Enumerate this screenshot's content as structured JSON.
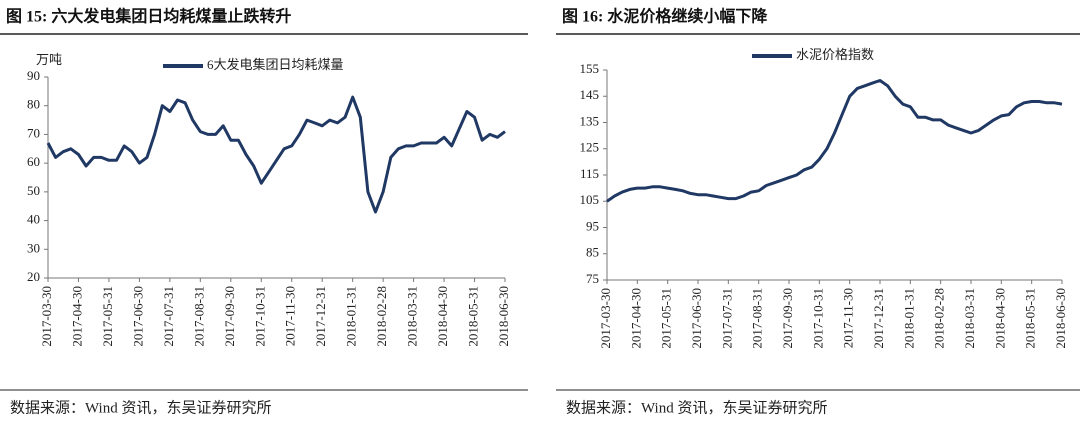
{
  "chart_data": [
    {
      "type": "line",
      "title": "图 15:  六大发电集团日均耗煤量止跌转升",
      "y_unit": "万吨",
      "source": "数据来源：Wind 资讯，东吴证券研究所",
      "categories": [
        "2017-03-30",
        null,
        null,
        null,
        "2017-04-30",
        null,
        null,
        null,
        "2017-05-31",
        null,
        null,
        null,
        "2017-06-30",
        null,
        null,
        null,
        "2017-07-31",
        null,
        null,
        null,
        "2017-08-31",
        null,
        null,
        null,
        "2017-09-30",
        null,
        null,
        null,
        "2017-10-31",
        null,
        null,
        null,
        "2017-11-30",
        null,
        null,
        null,
        "2017-12-31",
        null,
        null,
        null,
        "2018-01-31",
        null,
        null,
        null,
        "2018-02-28",
        null,
        null,
        null,
        "2018-03-31",
        null,
        null,
        null,
        "2018-04-30",
        null,
        null,
        null,
        "2018-05-31",
        null,
        null,
        null,
        "2018-06-30"
      ],
      "series": [
        {
          "name": "6大发电集团日均耗煤量",
          "color": "#203864",
          "values": [
            67,
            62,
            64,
            65,
            63,
            59,
            62,
            62,
            61,
            61,
            66,
            64,
            60,
            62,
            70,
            80,
            78,
            82,
            81,
            75,
            71,
            70,
            70,
            73,
            68,
            68,
            63,
            59,
            53,
            57,
            61,
            65,
            66,
            70,
            75,
            74,
            73,
            75,
            74,
            76,
            83,
            76,
            50,
            43,
            50,
            62,
            65,
            66,
            66,
            67,
            67,
            67,
            69,
            66,
            72,
            78,
            76,
            68,
            70,
            69,
            71
          ]
        }
      ],
      "ylim": [
        20,
        90
      ],
      "yticks": [
        20,
        30,
        40,
        50,
        60,
        70,
        80,
        90
      ]
    },
    {
      "type": "line",
      "title": "图 16:  水泥价格继续小幅下降",
      "source": "数据来源：Wind 资讯，东吴证券研究所",
      "categories": [
        "2017-03-30",
        null,
        null,
        null,
        "2017-04-30",
        null,
        null,
        null,
        "2017-05-31",
        null,
        null,
        null,
        "2017-06-30",
        null,
        null,
        null,
        "2017-07-31",
        null,
        null,
        null,
        "2017-08-31",
        null,
        null,
        null,
        "2017-09-30",
        null,
        null,
        null,
        "2017-10-31",
        null,
        null,
        null,
        "2017-11-30",
        null,
        null,
        null,
        "2017-12-31",
        null,
        null,
        null,
        "2018-01-31",
        null,
        null,
        null,
        "2018-02-28",
        null,
        null,
        null,
        "2018-03-31",
        null,
        null,
        null,
        "2018-04-30",
        null,
        null,
        null,
        "2018-05-31",
        null,
        null,
        null,
        "2018-06-30"
      ],
      "series": [
        {
          "name": "水泥价格指数",
          "color": "#203864",
          "values": [
            105,
            107,
            108.5,
            109.5,
            110,
            110,
            110.5,
            110.5,
            110,
            109.5,
            109,
            108,
            107.5,
            107.5,
            107,
            106.5,
            106,
            106,
            107,
            108.5,
            109,
            111,
            112,
            113,
            114,
            115,
            117,
            118,
            121,
            125,
            131,
            138,
            145,
            148,
            149,
            150,
            151,
            149,
            145,
            142,
            141,
            137,
            137,
            136,
            136,
            134,
            133,
            132,
            131,
            132,
            134,
            136,
            137.5,
            138,
            141,
            142.5,
            143,
            143,
            142.5,
            142.5,
            142
          ]
        }
      ],
      "ylim": [
        75,
        155
      ],
      "yticks": [
        75,
        85,
        95,
        105,
        115,
        125,
        135,
        145,
        155
      ]
    }
  ]
}
